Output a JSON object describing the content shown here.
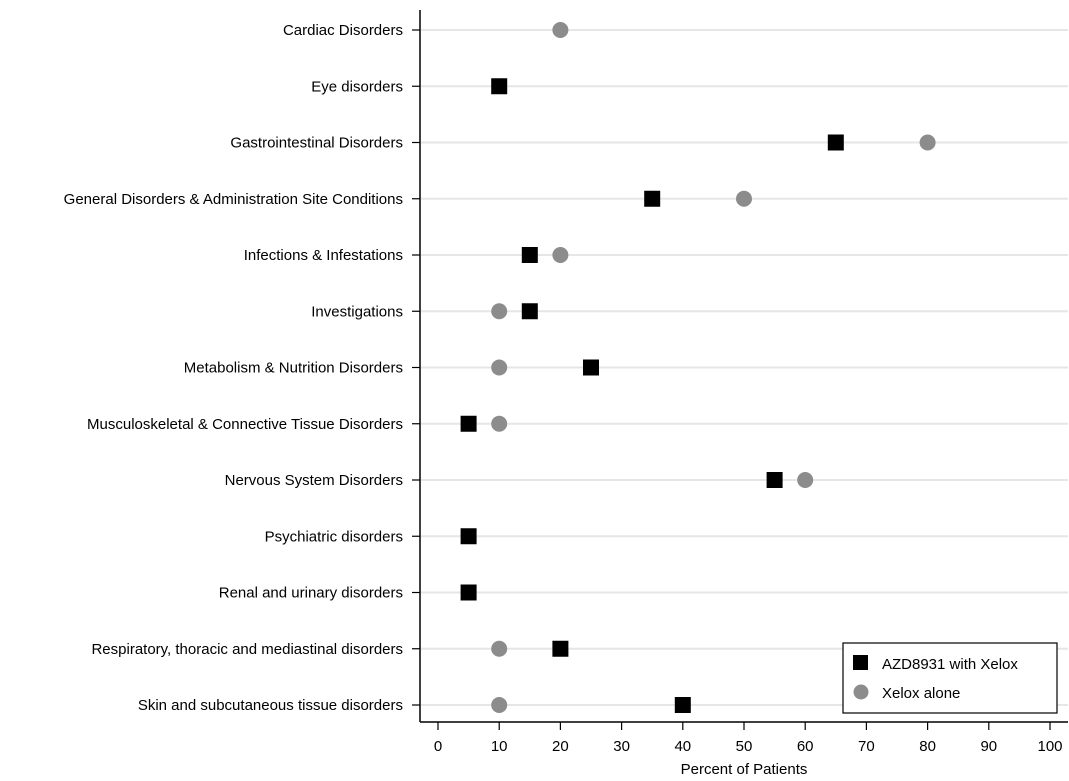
{
  "chart_data": {
    "type": "scatter",
    "orientation": "horizontal-dot-plot",
    "title": "",
    "xlabel": "Percent of Patients",
    "ylabel": "",
    "xlim": [
      0,
      100
    ],
    "xticks": [
      0,
      10,
      20,
      30,
      40,
      50,
      60,
      70,
      80,
      90,
      100
    ],
    "grid": "horizontal",
    "legend_position": "bottom-right",
    "categories": [
      "Cardiac Disorders",
      "Eye disorders",
      "Gastrointestinal Disorders",
      "General Disorders & Administration Site Conditions",
      "Infections & Infestations",
      "Investigations",
      "Metabolism & Nutrition Disorders",
      "Musculoskeletal & Connective Tissue Disorders",
      "Nervous System Disorders",
      "Psychiatric disorders",
      "Renal and urinary disorders",
      "Respiratory, thoracic and mediastinal disorders",
      "Skin and subcutaneous tissue disorders"
    ],
    "series": [
      {
        "name": "AZD8931 with Xelox",
        "marker": "square",
        "color": "#000000",
        "values": [
          null,
          10,
          65,
          35,
          15,
          15,
          25,
          5,
          55,
          5,
          5,
          20,
          40
        ]
      },
      {
        "name": "Xelox alone",
        "marker": "circle",
        "color": "#8c8c8c",
        "values": [
          20,
          null,
          80,
          50,
          20,
          10,
          10,
          10,
          60,
          null,
          null,
          10,
          10
        ]
      }
    ]
  }
}
